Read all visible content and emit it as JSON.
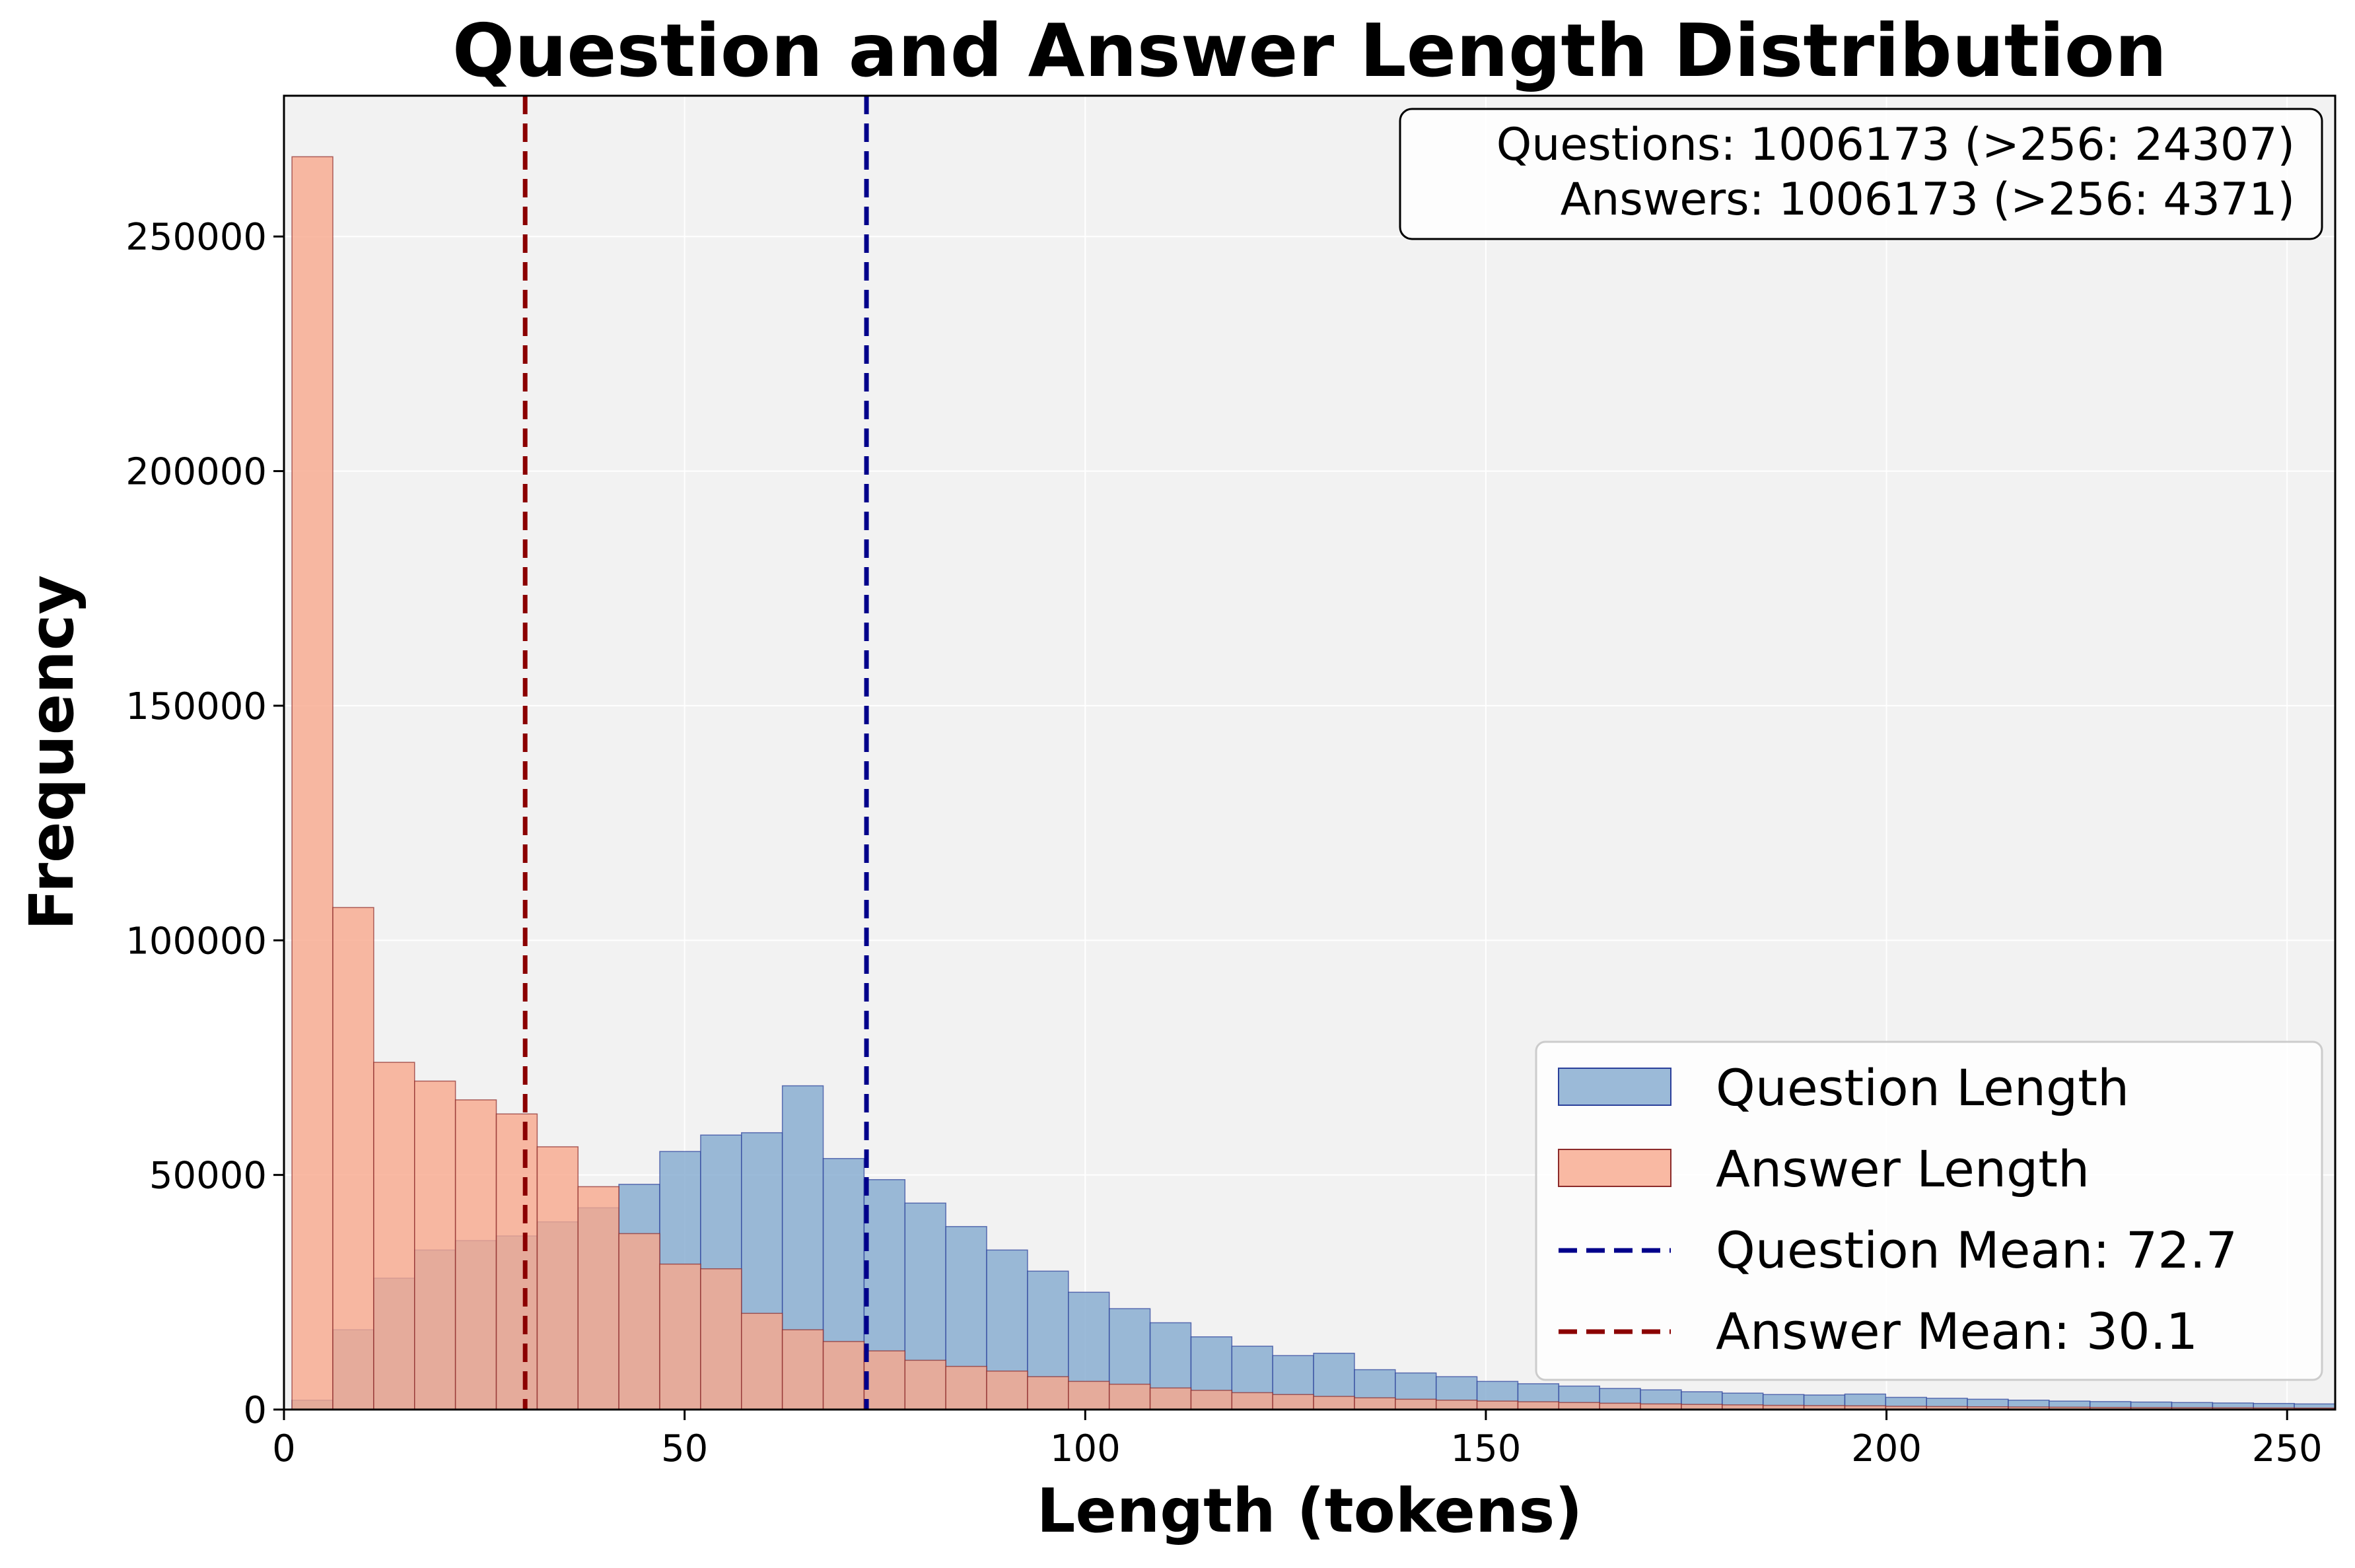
{
  "chart_data": {
    "type": "bar",
    "title": "Question and Answer Length Distribution",
    "xlabel": "Length (tokens)",
    "ylabel": "Frequency",
    "xlim": [
      0,
      256
    ],
    "ylim": [
      0,
      280000
    ],
    "xticks": [
      0,
      50,
      100,
      150,
      200,
      250
    ],
    "yticks": [
      0,
      50000,
      100000,
      150000,
      200000,
      250000
    ],
    "grid": true,
    "bin_start": 1,
    "bin_width": 5.1,
    "series": [
      {
        "name": "Question Length",
        "color": "#8aaed1",
        "edge": "#2a3f9a",
        "values": [
          2000,
          17000,
          28000,
          34000,
          36000,
          37000,
          40000,
          43000,
          48000,
          55000,
          58500,
          59000,
          69000,
          53500,
          49000,
          44000,
          39000,
          34000,
          29500,
          25000,
          21500,
          18500,
          15500,
          13500,
          11500,
          12000,
          8500,
          7800,
          7000,
          6000,
          5500,
          5000,
          4500,
          4200,
          3800,
          3500,
          3200,
          3100,
          3300,
          2600,
          2400,
          2200,
          2000,
          1800,
          1700,
          1600,
          1500,
          1400,
          1300,
          1200,
          1100,
          1600
        ]
      },
      {
        "name": "Answer Length",
        "color": "#f7a78c",
        "edge": "#8b2a2a",
        "values": [
          267000,
          107000,
          74000,
          70000,
          66000,
          63000,
          56000,
          47500,
          37500,
          31000,
          30000,
          20500,
          17000,
          14500,
          12500,
          10500,
          9200,
          8200,
          7000,
          6000,
          5400,
          4600,
          4100,
          3600,
          3200,
          2800,
          2500,
          2200,
          2000,
          1800,
          1650,
          1500,
          1350,
          1200,
          1100,
          1000,
          900,
          850,
          800,
          700,
          650,
          600,
          550,
          500,
          450,
          420,
          400,
          380,
          350,
          320,
          300,
          280
        ]
      }
    ],
    "mean_lines": [
      {
        "name": "Question Mean: 72.7",
        "x": 72.7,
        "color": "#00008b"
      },
      {
        "name": "Answer Mean: 30.1",
        "x": 30.1,
        "color": "#8b0000"
      }
    ],
    "legend_position": "lower-right",
    "stats_position": "upper-right",
    "stats_box": [
      "Questions: 1006173 (>256: 24307)",
      "Answers: 1006173 (>256: 4371)"
    ]
  }
}
